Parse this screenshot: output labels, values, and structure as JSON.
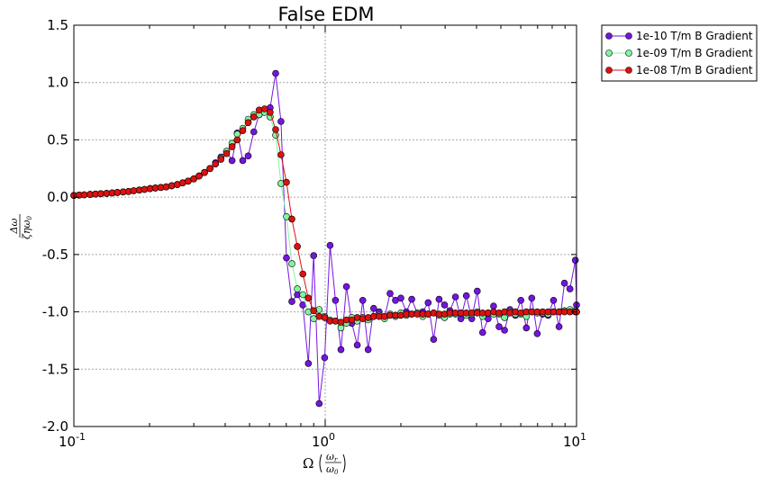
{
  "chart_data": {
    "type": "line",
    "title": "False EDM",
    "xscale": "log",
    "xlim": [
      0.1,
      10
    ],
    "ylim": [
      -2.0,
      1.5
    ],
    "grid": true,
    "legend_position": "outside-top-right",
    "x_ticks": [
      {
        "value": 0.1,
        "base": "10",
        "exp": "-1"
      },
      {
        "value": 1,
        "base": "10",
        "exp": "0"
      },
      {
        "value": 10,
        "base": "10",
        "exp": "1"
      }
    ],
    "y_ticks": [
      "1.5",
      "1.0",
      "0.5",
      "0.0",
      "-0.5",
      "-1.0",
      "-1.5",
      "-2.0"
    ],
    "xlabel": {
      "prefix": "Ω",
      "num": "ω",
      "num_sub": "r",
      "den": "ω",
      "den_sub": "0"
    },
    "ylabel": {
      "num": "Δω",
      "den": "ζηω",
      "den_sub": "0"
    },
    "series": [
      {
        "name": "1e-10 T/m B Gradient",
        "color": "#7415e0",
        "x": [
          0.1,
          0.105,
          0.11,
          0.116,
          0.122,
          0.128,
          0.135,
          0.142,
          0.149,
          0.157,
          0.165,
          0.173,
          0.182,
          0.191,
          0.201,
          0.211,
          0.222,
          0.233,
          0.245,
          0.258,
          0.271,
          0.285,
          0.3,
          0.315,
          0.331,
          0.348,
          0.366,
          0.385,
          0.405,
          0.426,
          0.447,
          0.47,
          0.494,
          0.52,
          0.546,
          0.574,
          0.604,
          0.635,
          0.667,
          0.701,
          0.737,
          0.775,
          0.815,
          0.857,
          0.9,
          0.946,
          0.995,
          1.046,
          1.099,
          1.155,
          1.215,
          1.277,
          1.342,
          1.411,
          1.483,
          1.559,
          1.639,
          1.723,
          1.811,
          1.904,
          2.001,
          2.104,
          2.211,
          2.325,
          2.444,
          2.569,
          2.7,
          2.839,
          2.984,
          3.137,
          3.298,
          3.467,
          3.644,
          3.831,
          4.027,
          4.233,
          4.45,
          4.678,
          4.918,
          5.17,
          5.434,
          5.713,
          6.005,
          6.313,
          6.636,
          6.976,
          7.334,
          7.709,
          8.104,
          8.519,
          8.956,
          9.414,
          9.897,
          10.0
        ],
        "y": [
          0.015,
          0.018,
          0.021,
          0.024,
          0.027,
          0.03,
          0.033,
          0.037,
          0.041,
          0.046,
          0.05,
          0.056,
          0.062,
          0.068,
          0.075,
          0.08,
          0.085,
          0.09,
          0.1,
          0.11,
          0.125,
          0.14,
          0.16,
          0.185,
          0.215,
          0.25,
          0.3,
          0.35,
          0.4,
          0.32,
          0.56,
          0.32,
          0.36,
          0.57,
          0.72,
          0.75,
          0.78,
          1.08,
          0.66,
          -0.53,
          -0.91,
          -0.85,
          -0.94,
          -1.45,
          -0.51,
          -1.8,
          -1.4,
          -0.42,
          -0.9,
          -1.33,
          -0.78,
          -1.1,
          -1.29,
          -0.9,
          -1.33,
          -0.97,
          -1.0,
          -1.05,
          -0.84,
          -0.9,
          -0.88,
          -1.0,
          -0.89,
          -1.01,
          -1.0,
          -0.92,
          -1.24,
          -0.89,
          -0.94,
          -0.99,
          -0.87,
          -1.06,
          -0.86,
          -1.06,
          -0.82,
          -1.18,
          -1.06,
          -0.95,
          -1.13,
          -1.16,
          -0.98,
          -1.03,
          -0.9,
          -1.14,
          -0.88,
          -1.19,
          -1.02,
          -1.03,
          -0.9,
          -1.13,
          -0.75,
          -0.8,
          -0.55,
          -0.94
        ]
      },
      {
        "name": "1e-09 T/m B Gradient",
        "color": "#80f5a0",
        "x": [
          0.1,
          0.105,
          0.11,
          0.116,
          0.122,
          0.128,
          0.135,
          0.142,
          0.149,
          0.157,
          0.165,
          0.173,
          0.182,
          0.191,
          0.201,
          0.211,
          0.222,
          0.233,
          0.245,
          0.258,
          0.271,
          0.285,
          0.3,
          0.315,
          0.331,
          0.348,
          0.366,
          0.385,
          0.405,
          0.426,
          0.447,
          0.47,
          0.494,
          0.52,
          0.546,
          0.574,
          0.604,
          0.635,
          0.667,
          0.701,
          0.737,
          0.775,
          0.815,
          0.857,
          0.9,
          0.946,
          0.995,
          1.046,
          1.099,
          1.155,
          1.215,
          1.277,
          1.342,
          1.411,
          1.483,
          1.559,
          1.639,
          1.723,
          1.811,
          1.904,
          2.001,
          2.104,
          2.211,
          2.325,
          2.444,
          2.569,
          2.7,
          2.839,
          2.984,
          3.137,
          3.298,
          3.467,
          3.644,
          3.831,
          4.027,
          4.233,
          4.45,
          4.678,
          4.918,
          5.17,
          5.434,
          5.713,
          6.005,
          6.313,
          6.636,
          6.976,
          7.334,
          7.709,
          8.104,
          8.519,
          8.956,
          9.414,
          9.897,
          10.0
        ],
        "y": [
          0.015,
          0.018,
          0.021,
          0.024,
          0.027,
          0.03,
          0.033,
          0.037,
          0.041,
          0.046,
          0.05,
          0.056,
          0.062,
          0.068,
          0.075,
          0.08,
          0.085,
          0.09,
          0.1,
          0.11,
          0.125,
          0.14,
          0.16,
          0.185,
          0.215,
          0.25,
          0.29,
          0.34,
          0.4,
          0.47,
          0.55,
          0.6,
          0.68,
          0.72,
          0.72,
          0.74,
          0.7,
          0.54,
          0.12,
          -0.17,
          -0.58,
          -0.8,
          -0.85,
          -1.0,
          -1.06,
          -0.98,
          -1.04,
          -1.07,
          -1.08,
          -1.14,
          -1.1,
          -1.05,
          -1.08,
          -1.05,
          -1.07,
          -1.04,
          -1.03,
          -1.06,
          -1.02,
          -1.04,
          -1.01,
          -1.03,
          -1.02,
          -1.01,
          -1.04,
          -1.02,
          -1.01,
          -1.03,
          -1.05,
          -1.02,
          -1.02,
          -1.01,
          -1.03,
          -1.02,
          -1.0,
          -1.04,
          -1.01,
          -1.02,
          -1.02,
          -1.05,
          -1.0,
          -1.02,
          -1.02,
          -1.04,
          -1.0,
          -1.01,
          -1.01,
          -1.02,
          -1.0,
          -1.0,
          -0.99,
          -0.98,
          -0.99,
          -1.0
        ]
      },
      {
        "name": "1e-08 T/m B Gradient",
        "color": "#dd1111",
        "x": [
          0.1,
          0.105,
          0.11,
          0.116,
          0.122,
          0.128,
          0.135,
          0.142,
          0.149,
          0.157,
          0.165,
          0.173,
          0.182,
          0.191,
          0.201,
          0.211,
          0.222,
          0.233,
          0.245,
          0.258,
          0.271,
          0.285,
          0.3,
          0.315,
          0.331,
          0.348,
          0.366,
          0.385,
          0.405,
          0.426,
          0.447,
          0.47,
          0.494,
          0.52,
          0.546,
          0.574,
          0.604,
          0.635,
          0.667,
          0.701,
          0.737,
          0.775,
          0.815,
          0.857,
          0.9,
          0.946,
          0.995,
          1.046,
          1.099,
          1.155,
          1.215,
          1.277,
          1.342,
          1.411,
          1.483,
          1.559,
          1.639,
          1.723,
          1.811,
          1.904,
          2.001,
          2.104,
          2.211,
          2.325,
          2.444,
          2.569,
          2.7,
          2.839,
          2.984,
          3.137,
          3.298,
          3.467,
          3.644,
          3.831,
          4.027,
          4.233,
          4.45,
          4.678,
          4.918,
          5.17,
          5.434,
          5.713,
          6.005,
          6.313,
          6.636,
          6.976,
          7.334,
          7.709,
          8.104,
          8.519,
          8.956,
          9.414,
          9.897,
          10.0
        ],
        "y": [
          0.015,
          0.018,
          0.021,
          0.024,
          0.027,
          0.03,
          0.033,
          0.037,
          0.041,
          0.046,
          0.05,
          0.056,
          0.062,
          0.068,
          0.075,
          0.08,
          0.085,
          0.09,
          0.1,
          0.11,
          0.125,
          0.14,
          0.16,
          0.185,
          0.215,
          0.25,
          0.29,
          0.33,
          0.38,
          0.44,
          0.5,
          0.58,
          0.65,
          0.7,
          0.76,
          0.77,
          0.74,
          0.59,
          0.37,
          0.13,
          -0.19,
          -0.43,
          -0.67,
          -0.88,
          -0.99,
          -1.04,
          -1.05,
          -1.08,
          -1.08,
          -1.09,
          -1.07,
          -1.07,
          -1.05,
          -1.06,
          -1.05,
          -1.04,
          -1.04,
          -1.04,
          -1.03,
          -1.03,
          -1.03,
          -1.02,
          -1.02,
          -1.02,
          -1.02,
          -1.02,
          -1.01,
          -1.02,
          -1.02,
          -1.01,
          -1.01,
          -1.01,
          -1.01,
          -1.01,
          -1.01,
          -1.01,
          -1.01,
          -1.0,
          -1.01,
          -1.0,
          -1.01,
          -1.0,
          -1.01,
          -1.0,
          -1.0,
          -1.0,
          -1.0,
          -1.0,
          -1.0,
          -1.0,
          -1.0,
          -1.0,
          -1.0,
          -1.0
        ]
      }
    ]
  }
}
